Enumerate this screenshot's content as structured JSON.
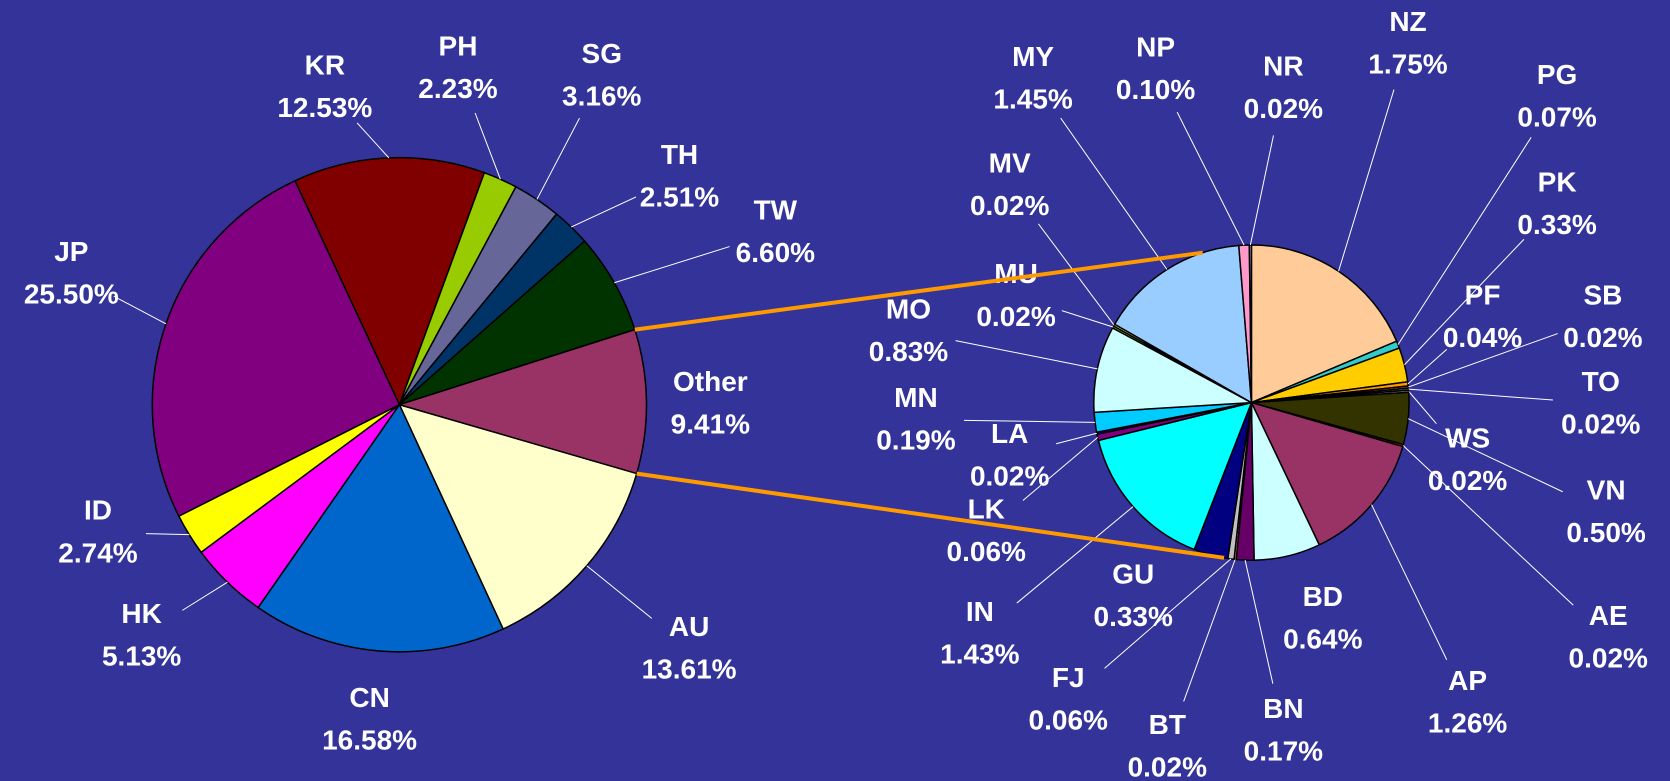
{
  "chart_data": [
    {
      "type": "pie",
      "categories": [
        "KR",
        "PH",
        "SG",
        "TH",
        "TW",
        "Other",
        "AU",
        "CN",
        "HK",
        "ID",
        "JP"
      ],
      "values": [
        12.53,
        2.23,
        3.16,
        2.51,
        6.6,
        9.41,
        13.61,
        16.58,
        5.13,
        2.74,
        25.5
      ],
      "value_labels": [
        "12.53%",
        "2.23%",
        "3.16%",
        "2.51%",
        "6.60%",
        "9.41%",
        "13.61%",
        "16.58%",
        "5.13%",
        "2.74%",
        "25.50%"
      ],
      "colors": [
        "#800000",
        "#99cc00",
        "#666699",
        "#003366",
        "#003300",
        "#993366",
        "#ffffcc",
        "#0066cc",
        "#ff00ff",
        "#ffff00",
        "#800080"
      ]
    },
    {
      "type": "pie",
      "categories": [
        "NZ",
        "PG",
        "PK",
        "PF",
        "SB",
        "TO",
        "WS",
        "VN",
        "AE",
        "AP",
        "BD",
        "BN",
        "BT",
        "FJ",
        "GU",
        "IN",
        "LK",
        "LA",
        "MN",
        "MO",
        "MU",
        "MV",
        "MY",
        "NP",
        "NR"
      ],
      "values": [
        1.75,
        0.07,
        0.33,
        0.04,
        0.02,
        0.02,
        0.02,
        0.5,
        0.02,
        1.26,
        0.64,
        0.17,
        0.02,
        0.06,
        0.33,
        1.43,
        0.06,
        0.02,
        0.19,
        0.83,
        0.02,
        0.02,
        1.45,
        0.1,
        0.02
      ],
      "value_labels": [
        "1.75%",
        "0.07%",
        "0.33%",
        "0.04%",
        "0.02%",
        "0.02%",
        "0.02%",
        "0.50%",
        "0.02%",
        "1.26%",
        "0.64%",
        "0.17%",
        "0.02%",
        "0.06%",
        "0.33%",
        "1.43%",
        "0.06%",
        "0.02%",
        "0.19%",
        "0.83%",
        "0.02%",
        "0.02%",
        "1.45%",
        "0.10%",
        "0.02%"
      ],
      "colors": [
        "#ffcc99",
        "#33cccc",
        "#ffcc00",
        "#ff9900",
        "#ff6600",
        "#666699",
        "#969696",
        "#333300",
        "#993300",
        "#993366",
        "#ccffff",
        "#660066",
        "#ff8080",
        "#c0c0c0",
        "#000080",
        "#00ffff",
        "#800080",
        "#0000ff",
        "#00ccff",
        "#ccffff",
        "#99cc00",
        "#ffff99",
        "#99ccff",
        "#ff99cc",
        "#cc99ff"
      ]
    }
  ]
}
